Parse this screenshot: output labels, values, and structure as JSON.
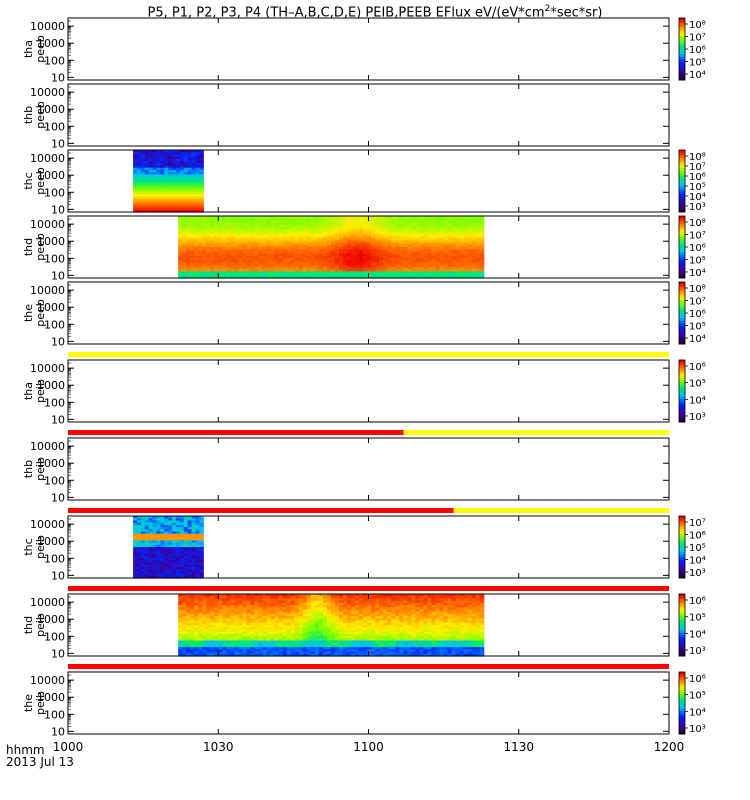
{
  "title": "P5, P1, P2, P3, P4 (TH–A,B,C,D,E) PEIB,PEEB EFlux eV/(eV*cm",
  "title_sup": "2",
  "title_tail": "*sec*sr)",
  "footer": {
    "time_label": "hhmm",
    "date_label": "2013 Jul 13"
  },
  "chart_data": {
    "type": "heatmap",
    "title": "P5, P1, P2, P3, P4 (TH-A,B,C,D,E) PEIB,PEEB EFlux eV/(eV*cm^2*sec*sr)",
    "x_unit": "hhmm",
    "date": "2013 Jul 13",
    "xlim": [
      "1000",
      "1200"
    ],
    "x_ticks": [
      "1000",
      "1030",
      "1100",
      "1130",
      "1200"
    ],
    "y_scale": "log",
    "ylim": [
      7,
      30000
    ],
    "y_ticks": [
      "10",
      "100",
      "1000",
      "10000"
    ],
    "panels": [
      {
        "ylabel": [
          "tha",
          "peeb"
        ],
        "colorbar": {
          "ticks": [
            "10⁸",
            "10⁷",
            "10⁶",
            "10⁵",
            "10⁴"
          ]
        },
        "data_range": null
      },
      {
        "ylabel": [
          "thb",
          "peeb"
        ],
        "colorbar": null,
        "data_range": null
      },
      {
        "ylabel": [
          "thc",
          "peeb"
        ],
        "colorbar": {
          "ticks": [
            "10⁸",
            "10⁷",
            "10⁶",
            "10⁵",
            "10⁴",
            "10³"
          ]
        },
        "data_range": [
          "1013",
          "1027"
        ],
        "pattern": "peeb_c"
      },
      {
        "ylabel": [
          "thd",
          "peeb"
        ],
        "colorbar": {
          "ticks": [
            "10⁸",
            "10⁷",
            "10⁶",
            "10⁵",
            "10⁴"
          ]
        },
        "data_range": [
          "1022",
          "1123"
        ],
        "pattern": "peeb_d"
      },
      {
        "ylabel": [
          "the",
          "peeb"
        ],
        "colorbar": {
          "ticks": [
            "10⁸",
            "10⁷",
            "10⁶",
            "10⁵",
            "10⁴"
          ]
        },
        "data_range": null
      },
      {
        "ylabel": [
          "tha",
          "peib"
        ],
        "colorbar": {
          "ticks": [
            "10⁶",
            "10⁵",
            "10⁴",
            "10³"
          ]
        },
        "data_range": null,
        "mode_bar": [
          {
            "from": "1000",
            "to": "1200",
            "color": "#ffff00"
          }
        ]
      },
      {
        "ylabel": [
          "thb",
          "peib"
        ],
        "colorbar": null,
        "data_range": null,
        "mode_bar": [
          {
            "from": "1000",
            "to": "1107",
            "color": "#ff0000"
          },
          {
            "from": "1107",
            "to": "1200",
            "color": "#ffff00"
          }
        ]
      },
      {
        "ylabel": [
          "thc",
          "peib"
        ],
        "colorbar": {
          "ticks": [
            "10⁷",
            "10⁶",
            "10⁵",
            "10⁴",
            "10³"
          ]
        },
        "data_range": [
          "1013",
          "1027"
        ],
        "pattern": "peib_c",
        "mode_bar": [
          {
            "from": "1000",
            "to": "1117",
            "color": "#ff0000"
          },
          {
            "from": "1117",
            "to": "1200",
            "color": "#ffff00"
          }
        ]
      },
      {
        "ylabel": [
          "thd",
          "peib"
        ],
        "colorbar": {
          "ticks": [
            "10⁶",
            "10⁵",
            "10⁴",
            "10³"
          ]
        },
        "data_range": [
          "1022",
          "1123"
        ],
        "pattern": "peib_d",
        "mode_bar": [
          {
            "from": "1000",
            "to": "1200",
            "color": "#ff0000"
          }
        ]
      },
      {
        "ylabel": [
          "the",
          "peib"
        ],
        "colorbar": {
          "ticks": [
            "10⁶",
            "10⁵",
            "10⁴",
            "10³"
          ]
        },
        "data_range": null,
        "mode_bar": [
          {
            "from": "1000",
            "to": "1200",
            "color": "#ff0000"
          }
        ]
      }
    ]
  }
}
